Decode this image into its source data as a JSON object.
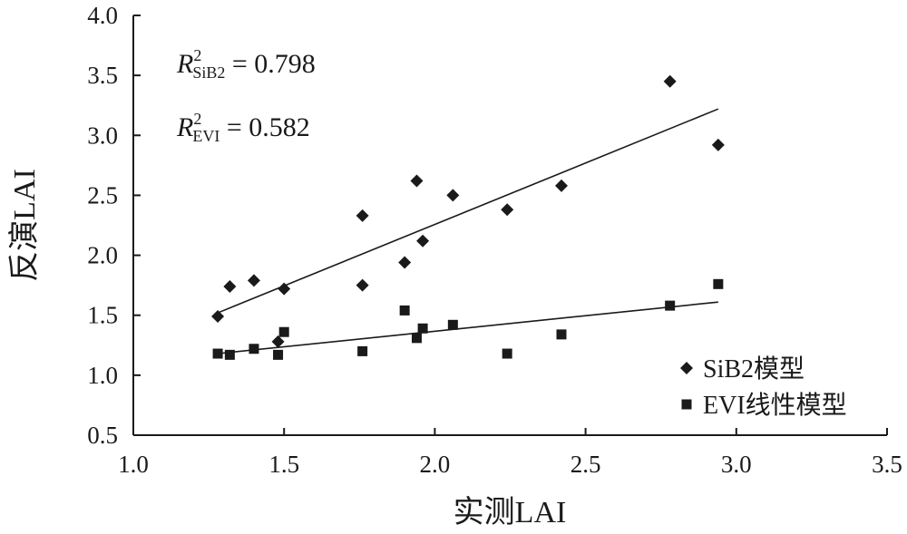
{
  "chart_data": {
    "type": "scatter",
    "xlabel": "实测LAI",
    "ylabel": "反演LAI",
    "xlim": [
      1.0,
      3.5
    ],
    "ylim": [
      0.5,
      4.0
    ],
    "x_ticks": [
      "1.0",
      "1.5",
      "2.0",
      "2.5",
      "3.0",
      "3.5"
    ],
    "y_ticks": [
      "0.5",
      "1.0",
      "1.5",
      "2.0",
      "2.5",
      "3.0",
      "3.5",
      "4.0"
    ],
    "grid": false,
    "legend": "bottom-right",
    "annotations": [
      {
        "prefix": "R",
        "sup": "2",
        "sub": "SiB2",
        "value": " = 0.798"
      },
      {
        "prefix": "R",
        "sup": "2",
        "sub": "EVI",
        "value": " = 0.582"
      }
    ],
    "series": [
      {
        "name": "SiB2模型",
        "marker": "diamond",
        "color": "#1a1a1a",
        "points": [
          [
            1.28,
            1.49
          ],
          [
            1.32,
            1.74
          ],
          [
            1.4,
            1.79
          ],
          [
            1.48,
            1.28
          ],
          [
            1.5,
            1.72
          ],
          [
            1.76,
            1.75
          ],
          [
            1.76,
            2.33
          ],
          [
            1.9,
            1.94
          ],
          [
            1.94,
            2.62
          ],
          [
            1.96,
            2.12
          ],
          [
            2.06,
            2.5
          ],
          [
            2.24,
            2.38
          ],
          [
            2.42,
            2.58
          ],
          [
            2.78,
            3.45
          ],
          [
            2.94,
            2.92
          ]
        ],
        "trendline": [
          [
            1.28,
            1.52
          ],
          [
            2.94,
            3.22
          ]
        ]
      },
      {
        "name": "EVI线性模型",
        "marker": "square",
        "color": "#1a1a1a",
        "points": [
          [
            1.28,
            1.18
          ],
          [
            1.32,
            1.17
          ],
          [
            1.4,
            1.22
          ],
          [
            1.48,
            1.17
          ],
          [
            1.5,
            1.36
          ],
          [
            1.76,
            1.2
          ],
          [
            1.9,
            1.54
          ],
          [
            1.94,
            1.31
          ],
          [
            1.96,
            1.39
          ],
          [
            2.06,
            1.42
          ],
          [
            2.24,
            1.18
          ],
          [
            2.42,
            1.34
          ],
          [
            2.78,
            1.58
          ],
          [
            2.94,
            1.76
          ]
        ],
        "trendline": [
          [
            1.28,
            1.18
          ],
          [
            2.94,
            1.61
          ]
        ]
      }
    ]
  }
}
